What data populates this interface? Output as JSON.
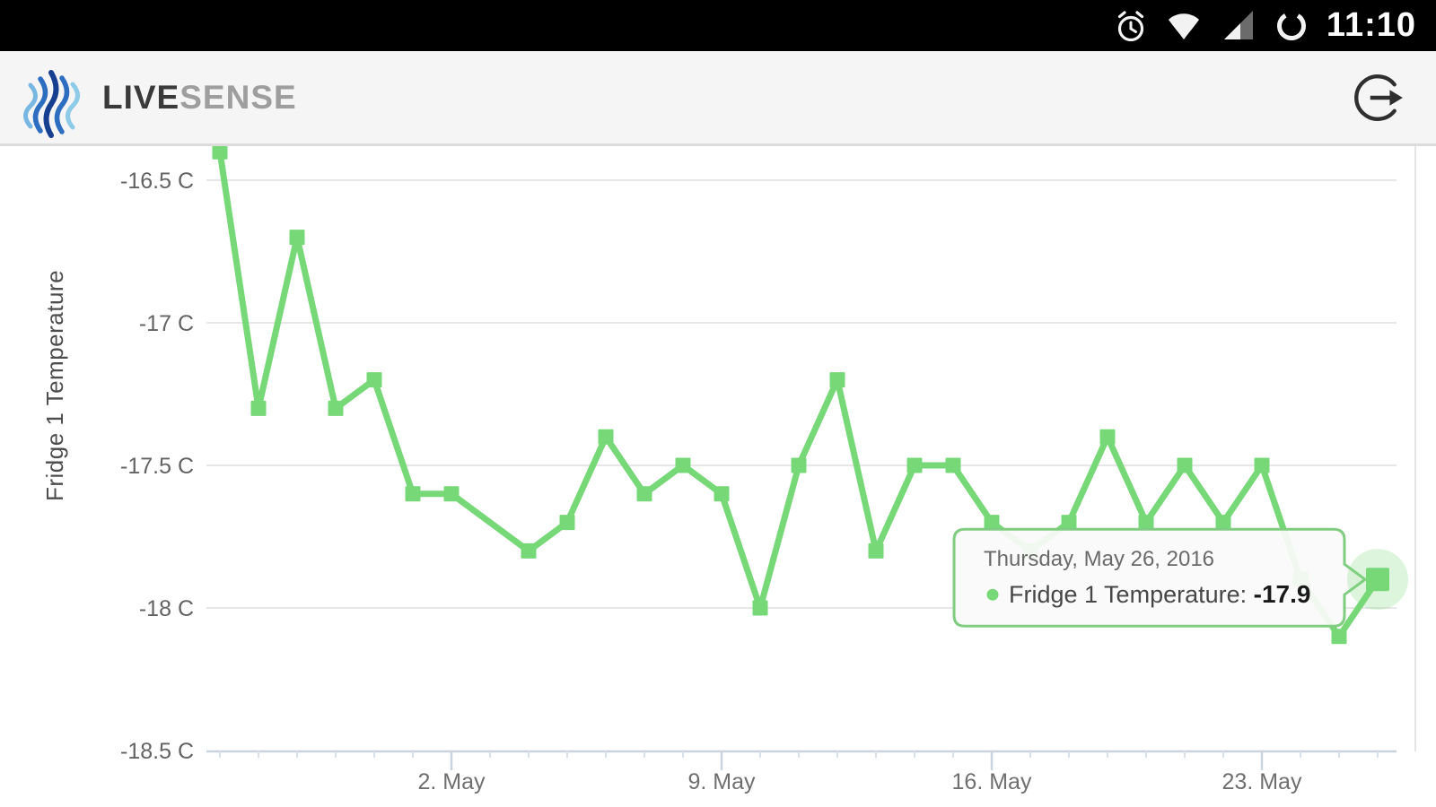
{
  "status_bar": {
    "time": "11:10",
    "icons": [
      "alarm-icon",
      "wifi-icon",
      "cell-signal-icon",
      "data-saver-icon"
    ]
  },
  "header": {
    "brand_bold": "LIVE",
    "brand_light": "SENSE",
    "logout_icon": "logout-icon"
  },
  "chart_data": {
    "type": "line",
    "title": "",
    "xlabel": "",
    "ylabel": "Fridge 1 Temperature",
    "grid": true,
    "legend": "none",
    "ylim": [
      -18.5,
      -16.4
    ],
    "unit": "C",
    "line_color": "#77d877",
    "grid_color": "#e7e7e7",
    "axis_color": "#c9d4df",
    "y_ticks": [
      {
        "label": "-16.5 C",
        "value": -16.5
      },
      {
        "label": "-17 C",
        "value": -17
      },
      {
        "label": "-17.5 C",
        "value": -17.5
      },
      {
        "label": "-18 C",
        "value": -18
      },
      {
        "label": "-18.5 C",
        "value": -18.5
      }
    ],
    "x_ticks": [
      {
        "label": "2. May",
        "day": 6
      },
      {
        "label": "9. May",
        "day": 13
      },
      {
        "label": "16. May",
        "day": 20
      },
      {
        "label": "23. May",
        "day": 27
      }
    ],
    "series": [
      {
        "name": "Fridge 1 Temperature",
        "color": "#77d877",
        "points": [
          {
            "date": "Apr 26",
            "day": 0,
            "value": -16.4
          },
          {
            "date": "Apr 27",
            "day": 1,
            "value": -17.3
          },
          {
            "date": "Apr 28",
            "day": 2,
            "value": -16.7
          },
          {
            "date": "Apr 29",
            "day": 3,
            "value": -17.3
          },
          {
            "date": "Apr 30",
            "day": 4,
            "value": -17.2
          },
          {
            "date": "May 1",
            "day": 5,
            "value": -17.6
          },
          {
            "date": "May 2",
            "day": 6,
            "value": -17.6
          },
          {
            "date": "May 4",
            "day": 8,
            "value": -17.8
          },
          {
            "date": "May 5",
            "day": 9,
            "value": -17.7
          },
          {
            "date": "May 6",
            "day": 10,
            "value": -17.4
          },
          {
            "date": "May 7",
            "day": 11,
            "value": -17.6
          },
          {
            "date": "May 8",
            "day": 12,
            "value": -17.5
          },
          {
            "date": "May 9",
            "day": 13,
            "value": -17.6
          },
          {
            "date": "May 10",
            "day": 14,
            "value": -18.0
          },
          {
            "date": "May 11",
            "day": 15,
            "value": -17.5
          },
          {
            "date": "May 12",
            "day": 16,
            "value": -17.2
          },
          {
            "date": "May 13",
            "day": 17,
            "value": -17.8
          },
          {
            "date": "May 14",
            "day": 18,
            "value": -17.5
          },
          {
            "date": "May 15",
            "day": 19,
            "value": -17.5
          },
          {
            "date": "May 16",
            "day": 20,
            "value": -17.7
          },
          {
            "date": "May 17",
            "day": 21,
            "value": -17.8
          },
          {
            "date": "May 18",
            "day": 22,
            "value": -17.7
          },
          {
            "date": "May 19",
            "day": 23,
            "value": -17.4
          },
          {
            "date": "May 20",
            "day": 24,
            "value": -17.7
          },
          {
            "date": "May 21",
            "day": 25,
            "value": -17.5
          },
          {
            "date": "May 22",
            "day": 26,
            "value": -17.7
          },
          {
            "date": "May 23",
            "day": 27,
            "value": -17.5
          },
          {
            "date": "May 24",
            "day": 28,
            "value": -17.9
          },
          {
            "date": "May 25",
            "day": 29,
            "value": -18.1
          },
          {
            "date": "May 26",
            "day": 30,
            "value": -17.9
          }
        ]
      }
    ],
    "selected": {
      "date_label": "Thursday, May 26, 2016",
      "series_label": "Fridge 1 Temperature:",
      "value_label": "-17.9",
      "day": 30,
      "value": -17.9
    }
  }
}
